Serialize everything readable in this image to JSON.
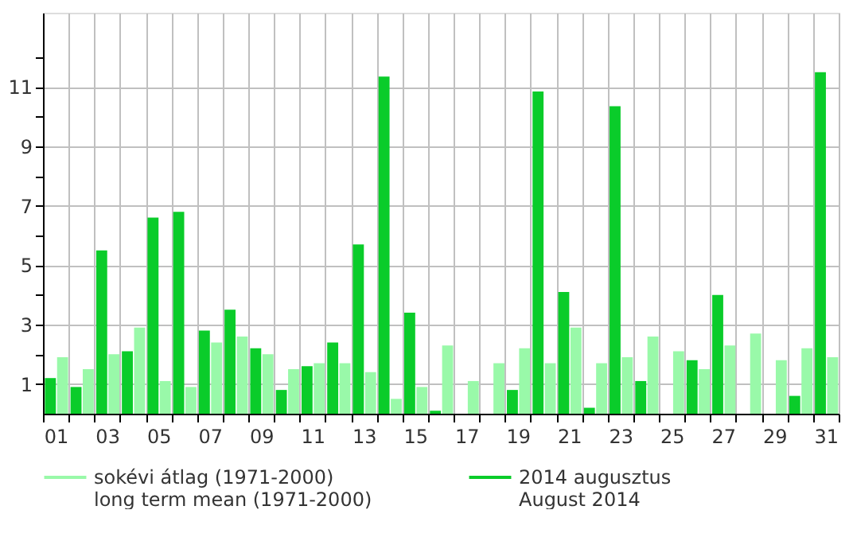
{
  "chart_data": {
    "type": "bar",
    "categories": [
      "01",
      null,
      "03",
      null,
      "05",
      null,
      "07",
      null,
      "09",
      null,
      "11",
      null,
      "13",
      null,
      "15",
      null,
      "17",
      null,
      "19",
      null,
      "21",
      null,
      "23",
      null,
      "25",
      null,
      "27",
      null,
      "29",
      null,
      "31"
    ],
    "series": [
      {
        "name": "sokévi átlag (1971-2000)\nlong term mean (1971-2000)",
        "color": "#99f9a9",
        "values": [
          1.9,
          1.5,
          2.0,
          2.9,
          1.1,
          0.9,
          2.4,
          2.6,
          2.0,
          1.5,
          1.7,
          1.7,
          1.4,
          0.5,
          0.9,
          2.3,
          1.1,
          1.7,
          2.2,
          1.7,
          2.9,
          1.7,
          1.9,
          2.6,
          2.1,
          1.5,
          2.3,
          2.7,
          1.8,
          2.2,
          1.9
        ]
      },
      {
        "name": "2014 augusztus\nAugust 2014",
        "color": "#0acc2a",
        "values": [
          1.2,
          0.9,
          5.5,
          2.1,
          6.6,
          6.8,
          2.8,
          3.5,
          2.2,
          0.8,
          1.6,
          2.4,
          5.7,
          11.35,
          3.4,
          0.1,
          0,
          0,
          0.8,
          10.85,
          4.1,
          0.2,
          10.35,
          1.1,
          0,
          1.8,
          4.0,
          0,
          0,
          0.6,
          11.5
        ]
      }
    ],
    "ylim": [
      0,
      13.5
    ],
    "yticks": [
      1,
      {
        "value": 2,
        "label": null
      },
      3,
      {
        "value": 4,
        "label": null
      },
      5,
      {
        "value": 6,
        "label": null
      },
      7,
      {
        "value": 8,
        "label": null
      },
      9,
      {
        "value": 10,
        "label": null
      },
      11,
      {
        "value": 12,
        "label": null
      }
    ],
    "grid": true,
    "legend": "bottom"
  }
}
